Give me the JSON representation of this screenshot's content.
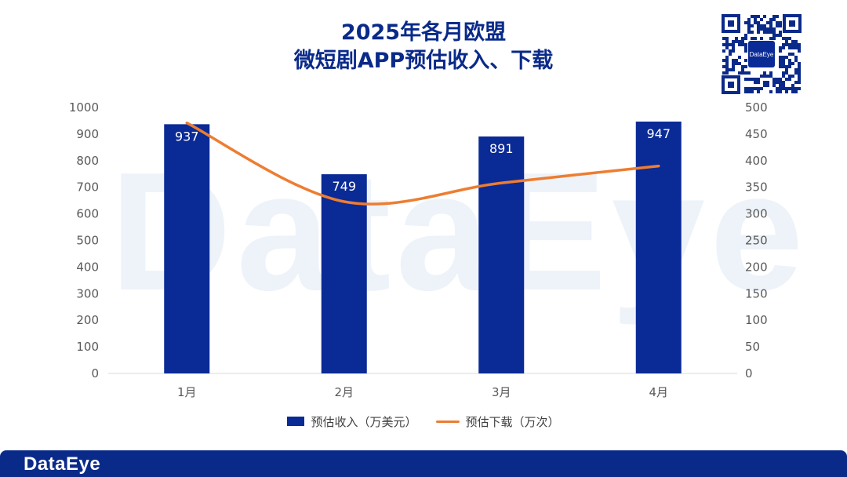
{
  "title": {
    "line1": "2025年各月欧盟",
    "line2": "微短剧APP预估收入、下载"
  },
  "brand": {
    "watermark": "DataEye",
    "footer_logo": "DataEye",
    "qr_label": "DataEye"
  },
  "colors": {
    "bar": "#0a2a96",
    "line": "#ed7d31",
    "title": "#0a2a8a",
    "footer": "#0a2a8a"
  },
  "chart_data": {
    "type": "bar",
    "categories": [
      "1月",
      "2月",
      "3月",
      "4月"
    ],
    "series": [
      {
        "name": "预估收入（万美元）",
        "type": "bar",
        "axis": "left",
        "values": [
          937,
          749,
          891,
          947
        ],
        "data_labels": [
          "937",
          "749",
          "891",
          "947"
        ]
      },
      {
        "name": "预估下载（万次）",
        "type": "line",
        "axis": "right",
        "smooth": true,
        "values": [
          471,
          323,
          358,
          390
        ]
      }
    ],
    "y_left": {
      "range": [
        0,
        1000
      ],
      "ticks": [
        "0",
        "100",
        "200",
        "300",
        "400",
        "500",
        "600",
        "700",
        "800",
        "900",
        "1000"
      ]
    },
    "y_right": {
      "range": [
        0,
        500
      ],
      "ticks": [
        "0",
        "50",
        "100",
        "150",
        "200",
        "250",
        "300",
        "350",
        "400",
        "450",
        "500"
      ]
    },
    "grid": false,
    "legend_position": "bottom"
  }
}
